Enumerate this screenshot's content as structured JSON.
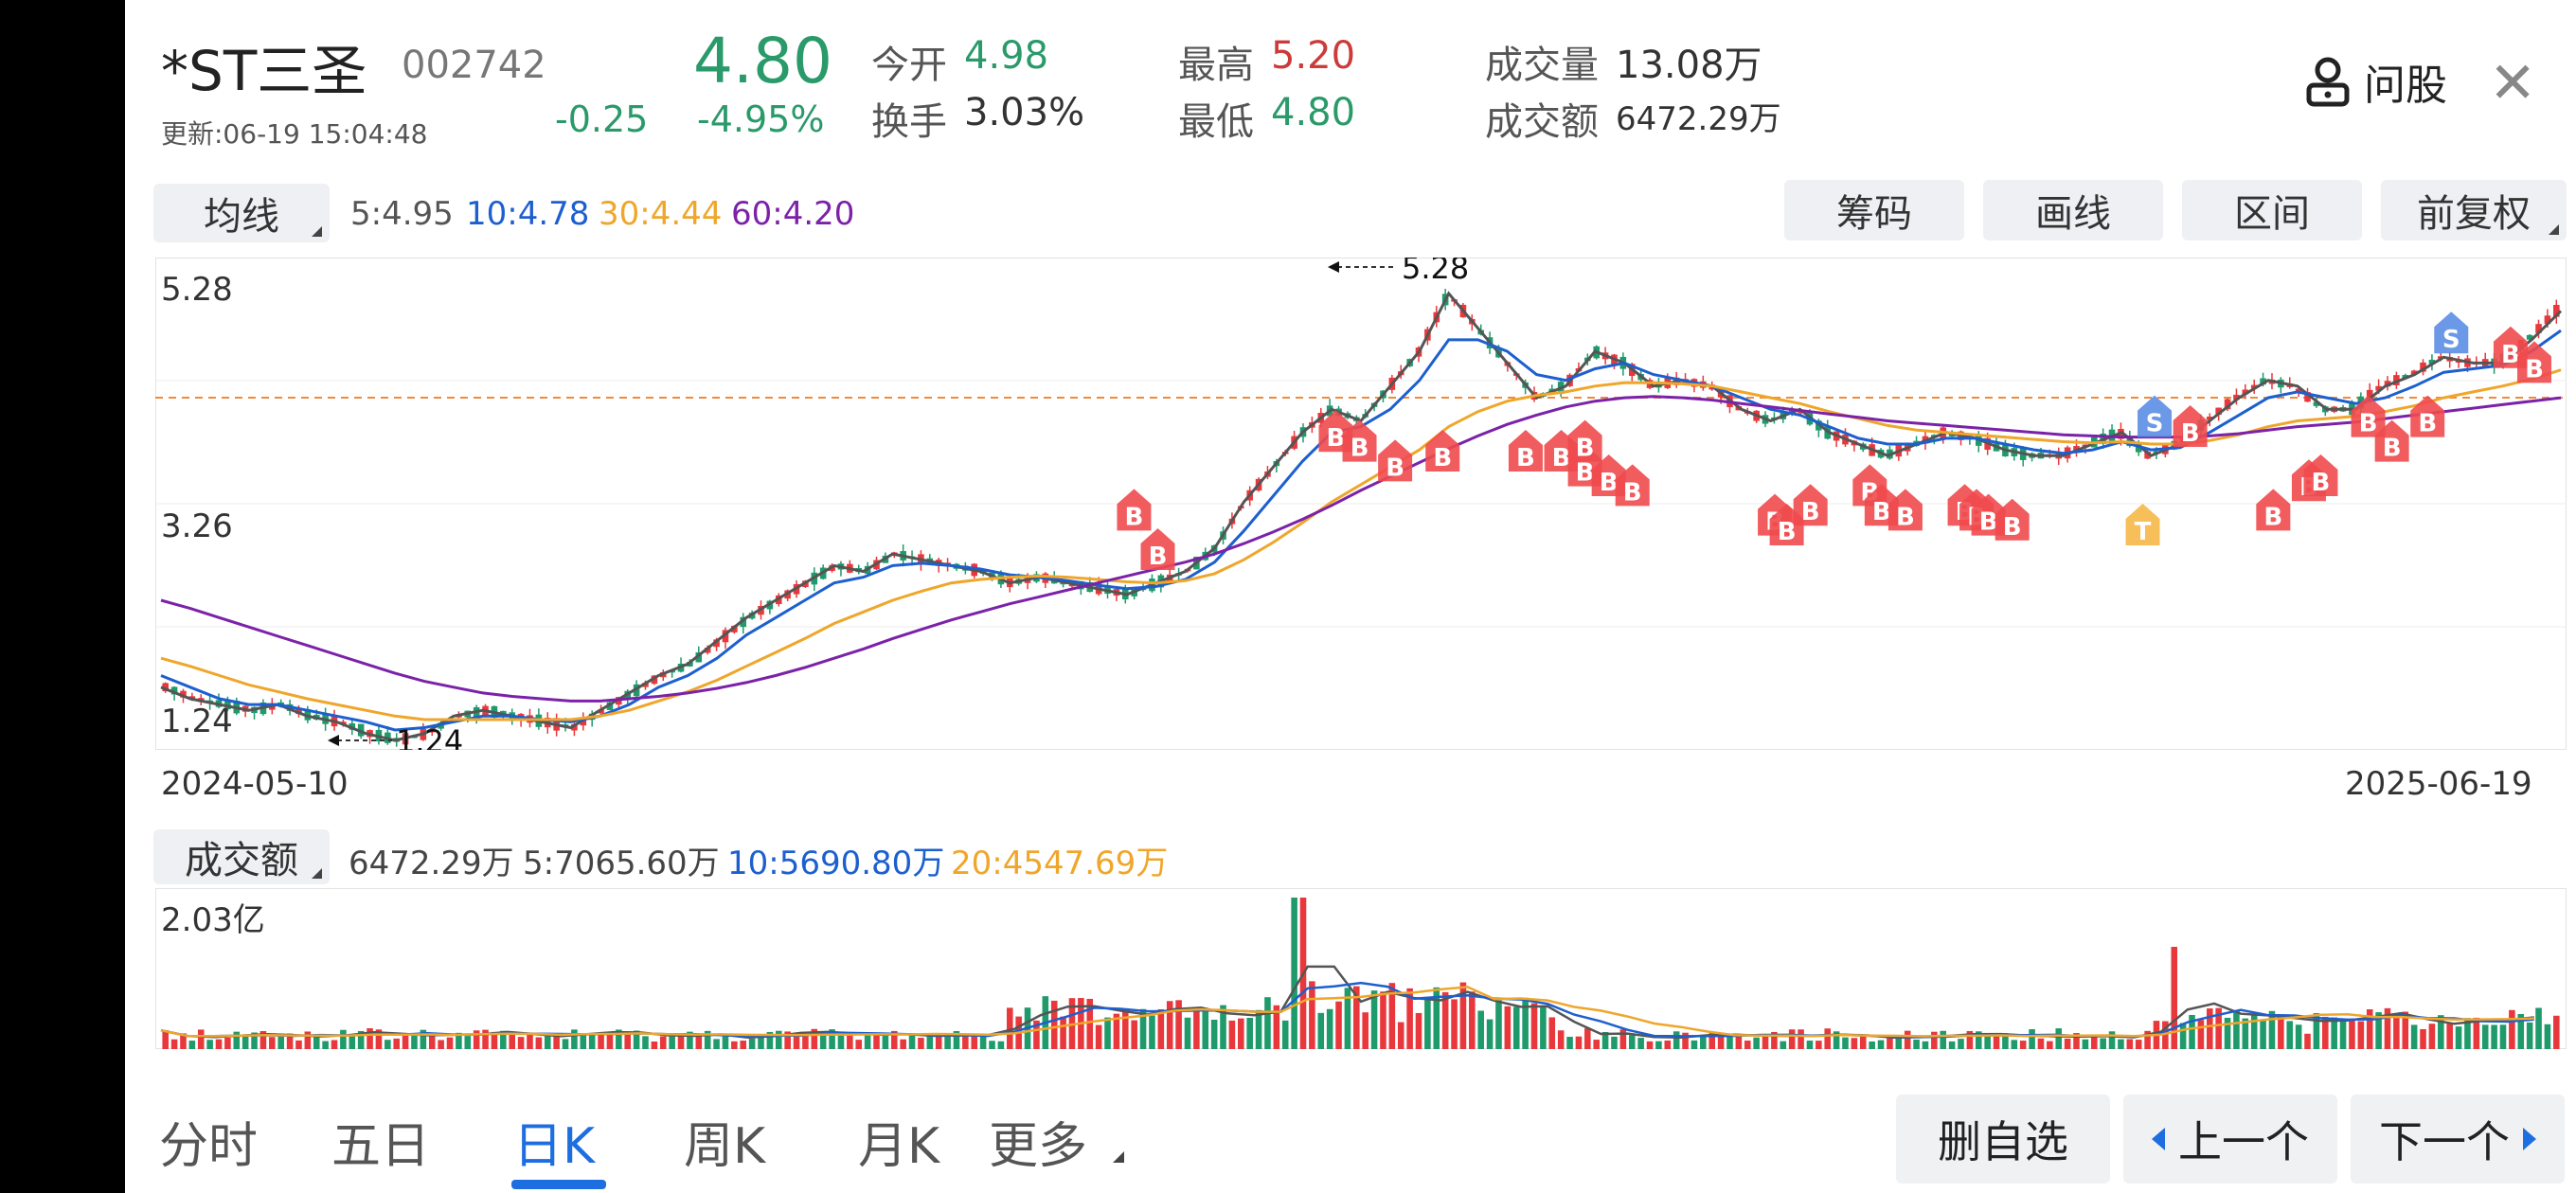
{
  "header": {
    "name": "*ST三圣",
    "code": "002742",
    "update_time": "更新:06-19 15:04:48",
    "price": "4.80",
    "change": "-0.25",
    "change_pct": "-4.95%",
    "open_label": "今开",
    "open_value": "4.98",
    "turnover_label": "换手",
    "turnover_value": "3.03%",
    "high_label": "最高",
    "high_value": "5.20",
    "low_label": "最低",
    "low_value": "4.80",
    "volume_label": "成交量",
    "volume_value": "13.08万",
    "amount_label": "成交额",
    "amount_value": "6472.29万",
    "ask_label": "问股"
  },
  "ma_bar": {
    "selector_label": "均线",
    "ma5": "5:4.95",
    "ma10": "10:4.78",
    "ma30": "30:4.44",
    "ma60": "60:4.20"
  },
  "tools": {
    "chips": "筹码",
    "draw": "画线",
    "range": "区间",
    "adjust": "前复权"
  },
  "price_chart": {
    "y_top_label": "5.28",
    "y_mid_label": "3.26",
    "y_bottom_label": "1.24",
    "max_label": "5.28",
    "min_label": "1.24",
    "start_date": "2024-05-10",
    "end_date": "2025-06-19"
  },
  "volume_bar": {
    "selector_label": "成交额",
    "current": "6472.29万",
    "ma5": "5:7065.60万",
    "ma10": "10:5690.80万",
    "ma20": "20:4547.69万",
    "y_top_label": "2.03亿"
  },
  "signals": {
    "buy": "B",
    "sell": "S",
    "t": "T"
  },
  "tabs": [
    {
      "label": "分时"
    },
    {
      "label": "五日"
    },
    {
      "label": "日K"
    },
    {
      "label": "周K"
    },
    {
      "label": "月K"
    },
    {
      "label": "更多"
    }
  ],
  "actions": {
    "remove_watchlist": "删自选",
    "prev": "上一个",
    "next": "下一个"
  },
  "colors": {
    "up": "#e8383c",
    "down": "#1e9a6b",
    "ma5": "#555555",
    "ma10": "#1d5fcf",
    "ma30": "#efa62a",
    "ma60": "#7b22a8",
    "accent": "#1d6ee0"
  },
  "chart_data": {
    "type": "line",
    "title": "",
    "x_range": [
      "2024-05-10",
      "2025-06-19"
    ],
    "ylim": [
      1.24,
      5.28
    ],
    "series": [
      {
        "name": "5",
        "values": [
          1.7,
          1.6,
          1.55,
          1.5,
          1.55,
          1.45,
          1.4,
          1.3,
          1.24,
          1.3,
          1.45,
          1.5,
          1.45,
          1.4,
          1.35,
          1.5,
          1.65,
          1.8,
          1.9,
          2.1,
          2.3,
          2.45,
          2.6,
          2.75,
          2.7,
          2.85,
          2.8,
          2.75,
          2.7,
          2.6,
          2.65,
          2.6,
          2.55,
          2.5,
          2.6,
          2.7,
          2.9,
          3.3,
          3.6,
          3.9,
          4.1,
          4.0,
          4.3,
          4.6,
          5.1,
          4.8,
          4.5,
          4.2,
          4.3,
          4.6,
          4.5,
          4.3,
          4.35,
          4.3,
          4.1,
          4.0,
          4.1,
          3.9,
          3.8,
          3.7,
          3.8,
          3.9,
          3.85,
          3.75,
          3.7,
          3.7,
          3.8,
          3.9,
          3.7,
          3.8,
          4.0,
          4.2,
          4.35,
          4.3,
          4.1,
          4.1,
          4.3,
          4.4,
          4.55,
          4.5,
          4.5,
          4.7,
          4.95
        ]
      },
      {
        "name": "10",
        "values": [
          1.8,
          1.7,
          1.6,
          1.55,
          1.55,
          1.5,
          1.45,
          1.4,
          1.33,
          1.35,
          1.4,
          1.45,
          1.45,
          1.42,
          1.4,
          1.45,
          1.55,
          1.7,
          1.8,
          1.95,
          2.15,
          2.3,
          2.45,
          2.6,
          2.65,
          2.75,
          2.77,
          2.75,
          2.72,
          2.67,
          2.65,
          2.62,
          2.58,
          2.55,
          2.57,
          2.63,
          2.78,
          3.05,
          3.35,
          3.65,
          3.9,
          3.95,
          4.1,
          4.35,
          4.7,
          4.7,
          4.6,
          4.4,
          4.35,
          4.45,
          4.5,
          4.4,
          4.35,
          4.3,
          4.2,
          4.1,
          4.05,
          3.95,
          3.85,
          3.8,
          3.8,
          3.85,
          3.85,
          3.8,
          3.75,
          3.72,
          3.75,
          3.82,
          3.75,
          3.77,
          3.9,
          4.05,
          4.2,
          4.25,
          4.2,
          4.15,
          4.2,
          4.3,
          4.42,
          4.45,
          4.48,
          4.6,
          4.78
        ]
      },
      {
        "name": "30",
        "values": [
          1.95,
          1.88,
          1.8,
          1.72,
          1.66,
          1.6,
          1.55,
          1.5,
          1.45,
          1.42,
          1.42,
          1.42,
          1.42,
          1.42,
          1.42,
          1.45,
          1.5,
          1.58,
          1.66,
          1.76,
          1.88,
          2.0,
          2.12,
          2.25,
          2.35,
          2.45,
          2.53,
          2.6,
          2.63,
          2.65,
          2.66,
          2.65,
          2.63,
          2.61,
          2.6,
          2.62,
          2.68,
          2.8,
          2.95,
          3.12,
          3.3,
          3.45,
          3.6,
          3.75,
          3.95,
          4.08,
          4.17,
          4.22,
          4.25,
          4.3,
          4.33,
          4.33,
          4.32,
          4.3,
          4.25,
          4.2,
          4.15,
          4.08,
          4.02,
          3.96,
          3.92,
          3.9,
          3.88,
          3.86,
          3.84,
          3.82,
          3.81,
          3.82,
          3.8,
          3.8,
          3.83,
          3.88,
          3.95,
          4.0,
          4.02,
          4.04,
          4.08,
          4.13,
          4.2,
          4.25,
          4.3,
          4.36,
          4.44
        ]
      },
      {
        "name": "60",
        "values": [
          2.45,
          2.38,
          2.3,
          2.22,
          2.14,
          2.06,
          1.98,
          1.9,
          1.82,
          1.75,
          1.7,
          1.65,
          1.62,
          1.6,
          1.58,
          1.58,
          1.6,
          1.62,
          1.65,
          1.69,
          1.74,
          1.8,
          1.87,
          1.95,
          2.03,
          2.12,
          2.2,
          2.28,
          2.35,
          2.42,
          2.48,
          2.54,
          2.6,
          2.66,
          2.72,
          2.78,
          2.85,
          2.94,
          3.04,
          3.15,
          3.27,
          3.4,
          3.52,
          3.64,
          3.76,
          3.87,
          3.97,
          4.05,
          4.12,
          4.17,
          4.2,
          4.21,
          4.2,
          4.18,
          4.15,
          4.12,
          4.09,
          4.06,
          4.03,
          4.0,
          3.98,
          3.96,
          3.94,
          3.92,
          3.9,
          3.88,
          3.87,
          3.86,
          3.86,
          3.86,
          3.87,
          3.89,
          3.92,
          3.95,
          3.97,
          3.99,
          4.02,
          4.05,
          4.08,
          4.11,
          4.14,
          4.17,
          4.2
        ]
      }
    ]
  }
}
